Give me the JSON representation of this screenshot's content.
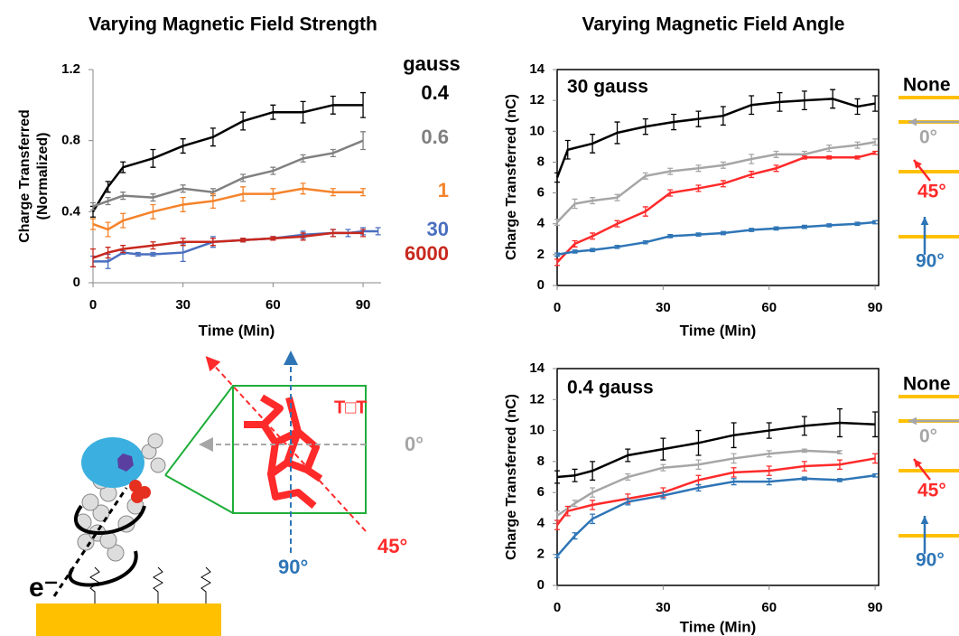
{
  "chart_data": [
    {
      "type": "line",
      "title": "Varying Magnetic Field Strength",
      "xlabel": "Time (Min)",
      "ylabel": [
        "Charge Transferred",
        "(Normalized)"
      ],
      "xlim": [
        0,
        96
      ],
      "ylim": [
        0,
        1.2
      ],
      "xticks": [
        0,
        30,
        60,
        90
      ],
      "yticks": [
        0,
        0.4,
        0.8,
        1.2
      ],
      "frame": false,
      "legend_title": "gauss",
      "series": [
        {
          "name": "0.4",
          "color": "#000000",
          "x": [
            0,
            5,
            10,
            20,
            30,
            40,
            50,
            60,
            70,
            80,
            90
          ],
          "values": [
            0.4,
            0.54,
            0.65,
            0.7,
            0.77,
            0.82,
            0.91,
            0.96,
            0.96,
            1.0,
            1.0
          ],
          "errors": [
            0.03,
            0.03,
            0.03,
            0.05,
            0.04,
            0.05,
            0.05,
            0.04,
            0.06,
            0.05,
            0.07
          ]
        },
        {
          "name": "0.6",
          "color": "#808080",
          "x": [
            0,
            5,
            10,
            20,
            30,
            40,
            50,
            60,
            70,
            80,
            90
          ],
          "values": [
            0.43,
            0.46,
            0.49,
            0.48,
            0.53,
            0.51,
            0.59,
            0.63,
            0.7,
            0.73,
            0.8
          ],
          "errors": [
            0.02,
            0.02,
            0.02,
            0.02,
            0.02,
            0.02,
            0.02,
            0.02,
            0.02,
            0.02,
            0.05
          ]
        },
        {
          "name": "1",
          "color": "#f5832a",
          "x": [
            0,
            5,
            10,
            20,
            30,
            40,
            50,
            60,
            70,
            80,
            90
          ],
          "values": [
            0.33,
            0.3,
            0.35,
            0.4,
            0.44,
            0.46,
            0.5,
            0.5,
            0.53,
            0.51,
            0.51
          ],
          "errors": [
            0.03,
            0.04,
            0.04,
            0.04,
            0.04,
            0.04,
            0.04,
            0.03,
            0.03,
            0.02,
            0.02
          ]
        },
        {
          "name": "30",
          "color": "#4a6fbf",
          "x": [
            0,
            5,
            10,
            15,
            20,
            30,
            40,
            50,
            60,
            70,
            80,
            85,
            90,
            95
          ],
          "values": [
            0.12,
            0.12,
            0.17,
            0.16,
            0.16,
            0.17,
            0.23,
            0.24,
            0.25,
            0.27,
            0.28,
            0.28,
            0.29,
            0.29
          ],
          "errors": [
            0.03,
            0.04,
            0.01,
            0.01,
            0.01,
            0.05,
            0.03,
            0.01,
            0.01,
            0.02,
            0.02,
            0.02,
            0.02,
            0.02
          ]
        },
        {
          "name": "6000",
          "color": "#c8281e",
          "x": [
            0,
            5,
            10,
            20,
            30,
            40,
            50,
            60,
            70,
            80,
            90
          ],
          "values": [
            0.14,
            0.17,
            0.19,
            0.21,
            0.23,
            0.23,
            0.24,
            0.25,
            0.26,
            0.28,
            0.28
          ],
          "errors": [
            0.05,
            0.03,
            0.02,
            0.02,
            0.02,
            0.02,
            0.01,
            0.01,
            0.02,
            0.02,
            0.02
          ]
        }
      ]
    },
    {
      "type": "line",
      "title": "Varying Magnetic Field Angle",
      "annotation": "30 gauss",
      "xlabel": "Time (Min)",
      "ylabel": "Charge Transferred (nC)",
      "xlim": [
        0,
        91
      ],
      "ylim": [
        0,
        14
      ],
      "xticks": [
        0,
        30,
        60,
        90
      ],
      "yticks": [
        0,
        2,
        4,
        6,
        8,
        10,
        12,
        14
      ],
      "frame": true,
      "series": [
        {
          "name": "None",
          "color": "#000000",
          "x": [
            0,
            3,
            10,
            17,
            25,
            33,
            40,
            47,
            55,
            63,
            70,
            78,
            85,
            90
          ],
          "values": [
            7.0,
            8.8,
            9.2,
            9.9,
            10.3,
            10.6,
            10.8,
            11.0,
            11.7,
            11.9,
            12.0,
            12.1,
            11.6,
            11.8
          ],
          "errors": [
            0.3,
            0.6,
            0.6,
            0.7,
            0.5,
            0.5,
            0.5,
            0.6,
            0.6,
            0.6,
            0.6,
            0.6,
            0.5,
            0.5
          ]
        },
        {
          "name": "0°",
          "color": "#a6a6a6",
          "x": [
            0,
            5,
            10,
            17,
            25,
            32,
            40,
            47,
            55,
            62,
            70,
            77,
            85,
            90
          ],
          "values": [
            4.1,
            5.3,
            5.5,
            5.7,
            7.1,
            7.4,
            7.6,
            7.8,
            8.2,
            8.5,
            8.5,
            8.9,
            9.1,
            9.3
          ],
          "errors": [
            0.2,
            0.3,
            0.2,
            0.2,
            0.2,
            0.2,
            0.2,
            0.2,
            0.3,
            0.2,
            0.2,
            0.2,
            0.2,
            0.2
          ]
        },
        {
          "name": "45°",
          "color": "#ff2a2a",
          "x": [
            0,
            5,
            10,
            17,
            25,
            32,
            40,
            47,
            55,
            62,
            70,
            77,
            85,
            90
          ],
          "values": [
            1.5,
            2.7,
            3.2,
            4.0,
            4.8,
            6.0,
            6.3,
            6.6,
            7.2,
            7.6,
            8.3,
            8.3,
            8.3,
            8.6
          ],
          "errors": [
            0.2,
            0.2,
            0.2,
            0.2,
            0.3,
            0.2,
            0.2,
            0.2,
            0.2,
            0.2,
            0.1,
            0.1,
            0.1,
            0.1
          ]
        },
        {
          "name": "90°",
          "color": "#2e75b6",
          "x": [
            0,
            5,
            10,
            17,
            25,
            32,
            40,
            47,
            55,
            62,
            70,
            77,
            85,
            90
          ],
          "values": [
            2.0,
            2.2,
            2.3,
            2.5,
            2.8,
            3.2,
            3.3,
            3.4,
            3.6,
            3.7,
            3.8,
            3.9,
            4.0,
            4.1
          ],
          "errors": [
            0.1,
            0.1,
            0.1,
            0.1,
            0.1,
            0.1,
            0.1,
            0.1,
            0.1,
            0.1,
            0.1,
            0.1,
            0.1,
            0.1
          ]
        }
      ]
    },
    {
      "type": "line",
      "annotation": "0.4 gauss",
      "xlabel": "Time (Min)",
      "ylabel": "Charge Transferred (nC)",
      "xlim": [
        0,
        91
      ],
      "ylim": [
        0,
        14
      ],
      "xticks": [
        0,
        30,
        60,
        90
      ],
      "yticks": [
        0,
        2,
        4,
        6,
        8,
        10,
        12,
        14
      ],
      "frame": true,
      "series": [
        {
          "name": "None",
          "color": "#000000",
          "x": [
            0,
            5,
            10,
            20,
            30,
            40,
            50,
            60,
            70,
            80,
            90
          ],
          "values": [
            7.0,
            7.1,
            7.4,
            8.4,
            8.8,
            9.2,
            9.7,
            10.0,
            10.3,
            10.5,
            10.4
          ],
          "errors": [
            0.4,
            0.4,
            0.6,
            0.4,
            0.7,
            0.8,
            0.8,
            0.5,
            0.6,
            0.9,
            0.8
          ]
        },
        {
          "name": "0°",
          "color": "#a6a6a6",
          "x": [
            0,
            5,
            10,
            20,
            30,
            40,
            50,
            60,
            70,
            80
          ],
          "values": [
            4.5,
            5.3,
            6.0,
            7.0,
            7.6,
            7.8,
            8.2,
            8.5,
            8.7,
            8.6
          ],
          "errors": [
            0.3,
            0.2,
            0.3,
            0.2,
            0.2,
            0.3,
            0.3,
            0.2,
            0.1,
            0.1
          ]
        },
        {
          "name": "45°",
          "color": "#ff2a2a",
          "x": [
            0,
            3,
            10,
            20,
            30,
            40,
            50,
            60,
            70,
            80,
            90
          ],
          "values": [
            3.9,
            4.8,
            5.2,
            5.6,
            6.0,
            6.8,
            7.3,
            7.4,
            7.7,
            7.8,
            8.2
          ],
          "errors": [
            0.3,
            0.3,
            0.3,
            0.3,
            0.3,
            0.3,
            0.3,
            0.3,
            0.3,
            0.3,
            0.3
          ]
        },
        {
          "name": "90°",
          "color": "#2e75b6",
          "x": [
            0,
            5,
            10,
            20,
            30,
            40,
            50,
            60,
            70,
            80,
            90
          ],
          "values": [
            1.9,
            3.2,
            4.3,
            5.4,
            5.8,
            6.3,
            6.7,
            6.7,
            6.9,
            6.8,
            7.1
          ],
          "errors": [
            0.1,
            0.2,
            0.3,
            0.2,
            0.2,
            0.2,
            0.2,
            0.2,
            0.1,
            0.1,
            0.1
          ]
        }
      ]
    }
  ],
  "diagram": {
    "dimer": "T□T",
    "angles": [
      "0°",
      "45°",
      "90°"
    ],
    "electron": "e⁻"
  }
}
